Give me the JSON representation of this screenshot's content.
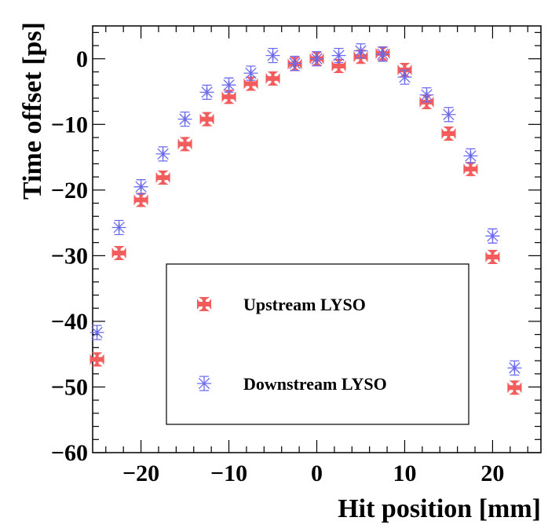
{
  "chart_data": {
    "type": "scatter",
    "title": "",
    "xlabel": "Hit position [mm]",
    "ylabel": "Time offset [ps]",
    "xlim": [
      -25.5,
      25.5
    ],
    "ylim": [
      -60,
      5
    ],
    "x_ticks": [
      -20,
      -10,
      0,
      10,
      20
    ],
    "y_ticks": [
      0,
      -10,
      -20,
      -30,
      -40,
      -50,
      -60
    ],
    "x_tick_labels": [
      "−20",
      "−10",
      "0",
      "10",
      "20"
    ],
    "y_tick_labels": [
      "0",
      "−10",
      "−20",
      "−30",
      "−40",
      "−50",
      "−60"
    ],
    "grid": false,
    "legend_position": "center",
    "series": [
      {
        "name": "Upstream LYSO",
        "color": "#f25c5c",
        "marker": "filled-cross",
        "x": [
          -25,
          -22.5,
          -20,
          -17.5,
          -15,
          -12.5,
          -10,
          -7.5,
          -5,
          -2.5,
          0,
          2.5,
          5,
          7.5,
          10,
          12.5,
          15,
          17.5,
          20,
          22.5
        ],
        "y": [
          -45.8,
          -29.6,
          -21.5,
          -18.1,
          -13.0,
          -9.2,
          -5.8,
          -3.8,
          -3.0,
          -0.8,
          0.0,
          -1.1,
          0.3,
          0.8,
          -1.7,
          -6.6,
          -11.4,
          -16.8,
          -30.2,
          -50.1
        ],
        "err": [
          0.6,
          0.6,
          0.6,
          0.6,
          0.6,
          0.6,
          0.6,
          0.6,
          0.6,
          0.6,
          0.6,
          0.6,
          0.6,
          0.6,
          0.6,
          0.6,
          0.6,
          0.6,
          0.6,
          0.6
        ]
      },
      {
        "name": "Downstream LYSO",
        "color": "#6b6bf0",
        "marker": "open-asterisk",
        "x": [
          -25,
          -22.5,
          -20,
          -17.5,
          -15,
          -12.5,
          -10,
          -7.5,
          -5,
          -2.5,
          0,
          2.5,
          5,
          7.5,
          10,
          12.5,
          15,
          17.5,
          20,
          22.5
        ],
        "y": [
          -41.7,
          -25.7,
          -19.5,
          -14.5,
          -9.2,
          -5.1,
          -4.0,
          -2.2,
          0.5,
          -0.7,
          0.0,
          0.5,
          1.2,
          0.7,
          -2.8,
          -5.5,
          -8.5,
          -14.8,
          -27.0,
          -47.1
        ],
        "err": [
          0.6,
          0.6,
          0.6,
          0.6,
          0.6,
          0.6,
          0.6,
          0.6,
          0.6,
          0.6,
          0.6,
          0.6,
          0.6,
          0.6,
          0.6,
          0.6,
          0.6,
          0.6,
          0.6,
          0.6
        ]
      }
    ]
  }
}
